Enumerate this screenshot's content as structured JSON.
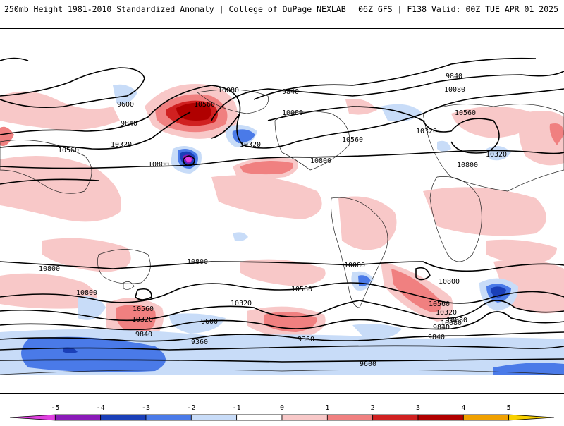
{
  "header": {
    "title_left": "250mb Height 1981-2010 Standardized Anomaly | College of DuPage NEXLAB",
    "title_right": "06Z GFS | F138 Valid: 00Z TUE APR 01 2025"
  },
  "contour_labels": [
    "9600",
    "9840",
    "10080",
    "10320",
    "10560",
    "10800",
    "9360"
  ],
  "map_labels": [
    {
      "text": "9600"
    },
    {
      "text": "9840"
    },
    {
      "text": "10320"
    },
    {
      "text": "10560"
    },
    {
      "text": "10800"
    },
    {
      "text": "10080"
    },
    {
      "text": "10560"
    },
    {
      "text": "9840"
    },
    {
      "text": "10080"
    },
    {
      "text": "10320"
    },
    {
      "text": "10560"
    },
    {
      "text": "10800"
    },
    {
      "text": "9840"
    },
    {
      "text": "10080"
    },
    {
      "text": "10320"
    },
    {
      "text": "10560"
    },
    {
      "text": "10320"
    },
    {
      "text": "10800"
    },
    {
      "text": "10800"
    },
    {
      "text": "10800"
    },
    {
      "text": "10080"
    },
    {
      "text": "10560"
    },
    {
      "text": "10320"
    },
    {
      "text": "9840"
    },
    {
      "text": "9600"
    },
    {
      "text": "10800"
    },
    {
      "text": "10560"
    },
    {
      "text": "10080"
    },
    {
      "text": "10320"
    },
    {
      "text": "9840"
    },
    {
      "text": "9360"
    },
    {
      "text": "10800"
    },
    {
      "text": "10560"
    },
    {
      "text": "10320"
    },
    {
      "text": "10080"
    },
    {
      "text": "9840"
    },
    {
      "text": "9600"
    },
    {
      "text": "9360"
    }
  ],
  "colorbar": {
    "ticks": [
      "-5",
      "-4",
      "-3",
      "-2",
      "-1",
      "0",
      "1",
      "2",
      "3",
      "4",
      "5"
    ],
    "colors": [
      "#e040e0",
      "#8a1ab8",
      "#1a3fb8",
      "#4a7ae8",
      "#c8dcf8",
      "#ffffff",
      "#f8c8c8",
      "#f08080",
      "#d02020",
      "#b00000",
      "#f0a000",
      "#f8d000"
    ]
  }
}
